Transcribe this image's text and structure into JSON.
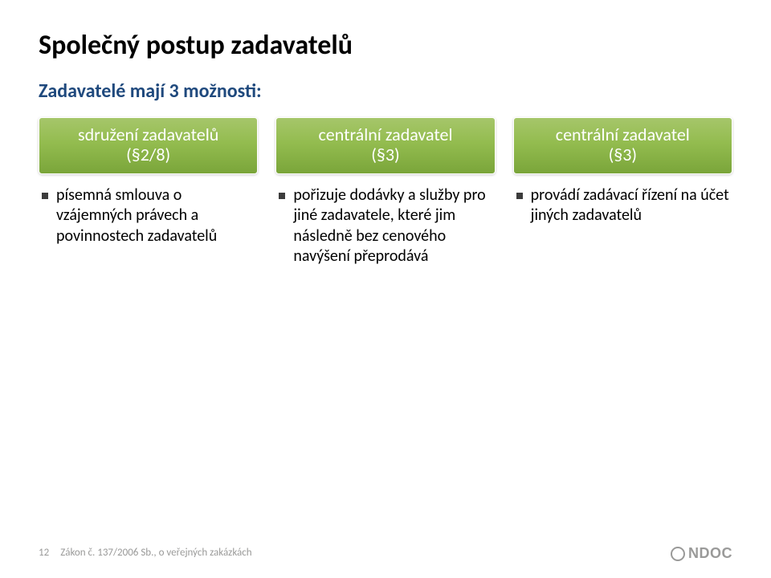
{
  "title": "Společný postup zadavatelů",
  "subtitle": "Zadavatelé mají 3 možnosti:",
  "columns": [
    {
      "header_line1": "sdružení zadavatelů",
      "header_line2": "(§2/8)",
      "bullets": [
        "písemná smlouva o vzájemných právech a povinnostech zadavatelů"
      ]
    },
    {
      "header_line1": "centrální zadavatel",
      "header_line2": "(§3)",
      "bullets": [
        "pořizuje dodávky a služby pro jiné zadavatele, které jim následně bez cenového navýšení přeprodává"
      ]
    },
    {
      "header_line1": "centrální zadavatel",
      "header_line2": "(§3)",
      "bullets": [
        "provádí zadávací řízení na účet jiných zadavatelů"
      ]
    }
  ],
  "footer": {
    "page": "12",
    "source": "Zákon č. 137/2006 Sb., o veřejných zakázkách"
  },
  "logo": {
    "text": "NDOC"
  },
  "style": {
    "header_gradient_top": "#a6c66a",
    "header_gradient_mid": "#93bc4f",
    "header_gradient_bot": "#7aa53a",
    "subtitle_color": "#1f497d",
    "bullet_square_color": "#3c3c3c",
    "footer_color": "#9a9a99",
    "title_fontsize": 34,
    "subtitle_fontsize": 24,
    "header_fontsize": 22,
    "bullet_fontsize": 20,
    "footer_fontsize": 13,
    "background_color": "#ffffff"
  }
}
